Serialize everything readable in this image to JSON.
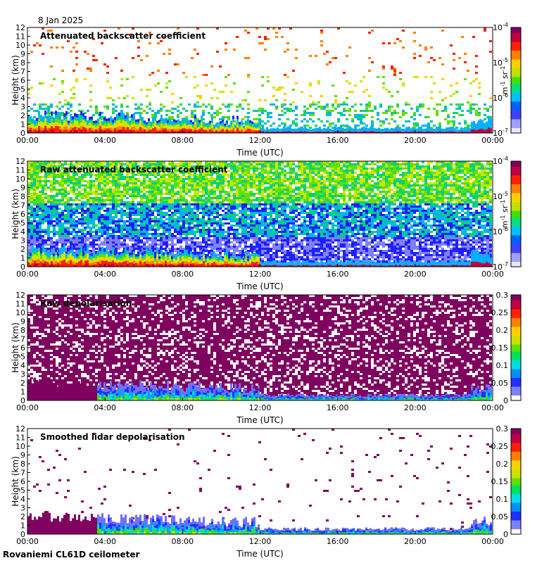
{
  "date_label": "8 Jan 2025",
  "footer_label": "Rovaniemi CL61D ceilometer",
  "chart_data": [
    {
      "type": "heatmap",
      "title": "Attenuated backscatter coefficient",
      "xlabel": "Time (UTC)",
      "ylabel": "Height (km)",
      "x_ticks": [
        "00:00",
        "04:00",
        "08:00",
        "12:00",
        "16:00",
        "20:00",
        "00:00"
      ],
      "y_ticks": [
        "0",
        "1",
        "2",
        "3",
        "4",
        "5",
        "6",
        "7",
        "8",
        "9",
        "10",
        "11",
        "12"
      ],
      "ylim": [
        0,
        12
      ],
      "colorbar": {
        "scale": "log",
        "range": [
          1e-07,
          0.0001
        ],
        "ticks": [
          "10-7",
          "10-6",
          "10-5",
          "10-4"
        ],
        "unit": "m-1 sr-1"
      },
      "pattern": "sparse"
    },
    {
      "type": "heatmap",
      "title": "Raw attenuated backscatter coefficient",
      "xlabel": "Time (UTC)",
      "ylabel": "Height (km)",
      "x_ticks": [
        "00:00",
        "04:00",
        "08:00",
        "12:00",
        "16:00",
        "20:00",
        "00:00"
      ],
      "y_ticks": [
        "0",
        "1",
        "2",
        "3",
        "4",
        "5",
        "6",
        "7",
        "8",
        "9",
        "10",
        "11",
        "12"
      ],
      "ylim": [
        0,
        12
      ],
      "colorbar": {
        "scale": "log",
        "range": [
          1e-07,
          0.0001
        ],
        "ticks": [
          "10-7",
          "10-6",
          "10-5",
          "10-4"
        ],
        "unit": "m-1 sr-1"
      },
      "pattern": "dense"
    },
    {
      "type": "heatmap",
      "title": "Raw depolarisation",
      "xlabel": "Time (UTC)",
      "ylabel": "Height (km)",
      "x_ticks": [
        "00:00",
        "04:00",
        "08:00",
        "12:00",
        "16:00",
        "20:00",
        "00:00"
      ],
      "y_ticks": [
        "0",
        "1",
        "2",
        "3",
        "4",
        "5",
        "6",
        "7",
        "8",
        "9",
        "10",
        "11",
        "12"
      ],
      "ylim": [
        0,
        12
      ],
      "colorbar": {
        "scale": "linear",
        "range": [
          0,
          0.3
        ],
        "ticks": [
          "0",
          "0.05",
          "0.1",
          "0.15",
          "0.2",
          "0.25",
          "0.3"
        ],
        "unit": ""
      },
      "pattern": "noise"
    },
    {
      "type": "heatmap",
      "title": "Smoothed lidar depolarisation",
      "xlabel": "Time (UTC)",
      "ylabel": "Height (km)",
      "x_ticks": [
        "00:00",
        "04:00",
        "08:00",
        "12:00",
        "16:00",
        "20:00",
        "00:00"
      ],
      "y_ticks": [
        "0",
        "1",
        "2",
        "3",
        "4",
        "5",
        "6",
        "7",
        "8",
        "9",
        "10",
        "11",
        "12"
      ],
      "ylim": [
        0,
        12
      ],
      "colorbar": {
        "scale": "linear",
        "range": [
          0,
          0.3
        ],
        "ticks": [
          "0",
          "0.05",
          "0.1",
          "0.15",
          "0.2",
          "0.25",
          "0.3"
        ],
        "unit": ""
      },
      "pattern": "depol"
    }
  ]
}
